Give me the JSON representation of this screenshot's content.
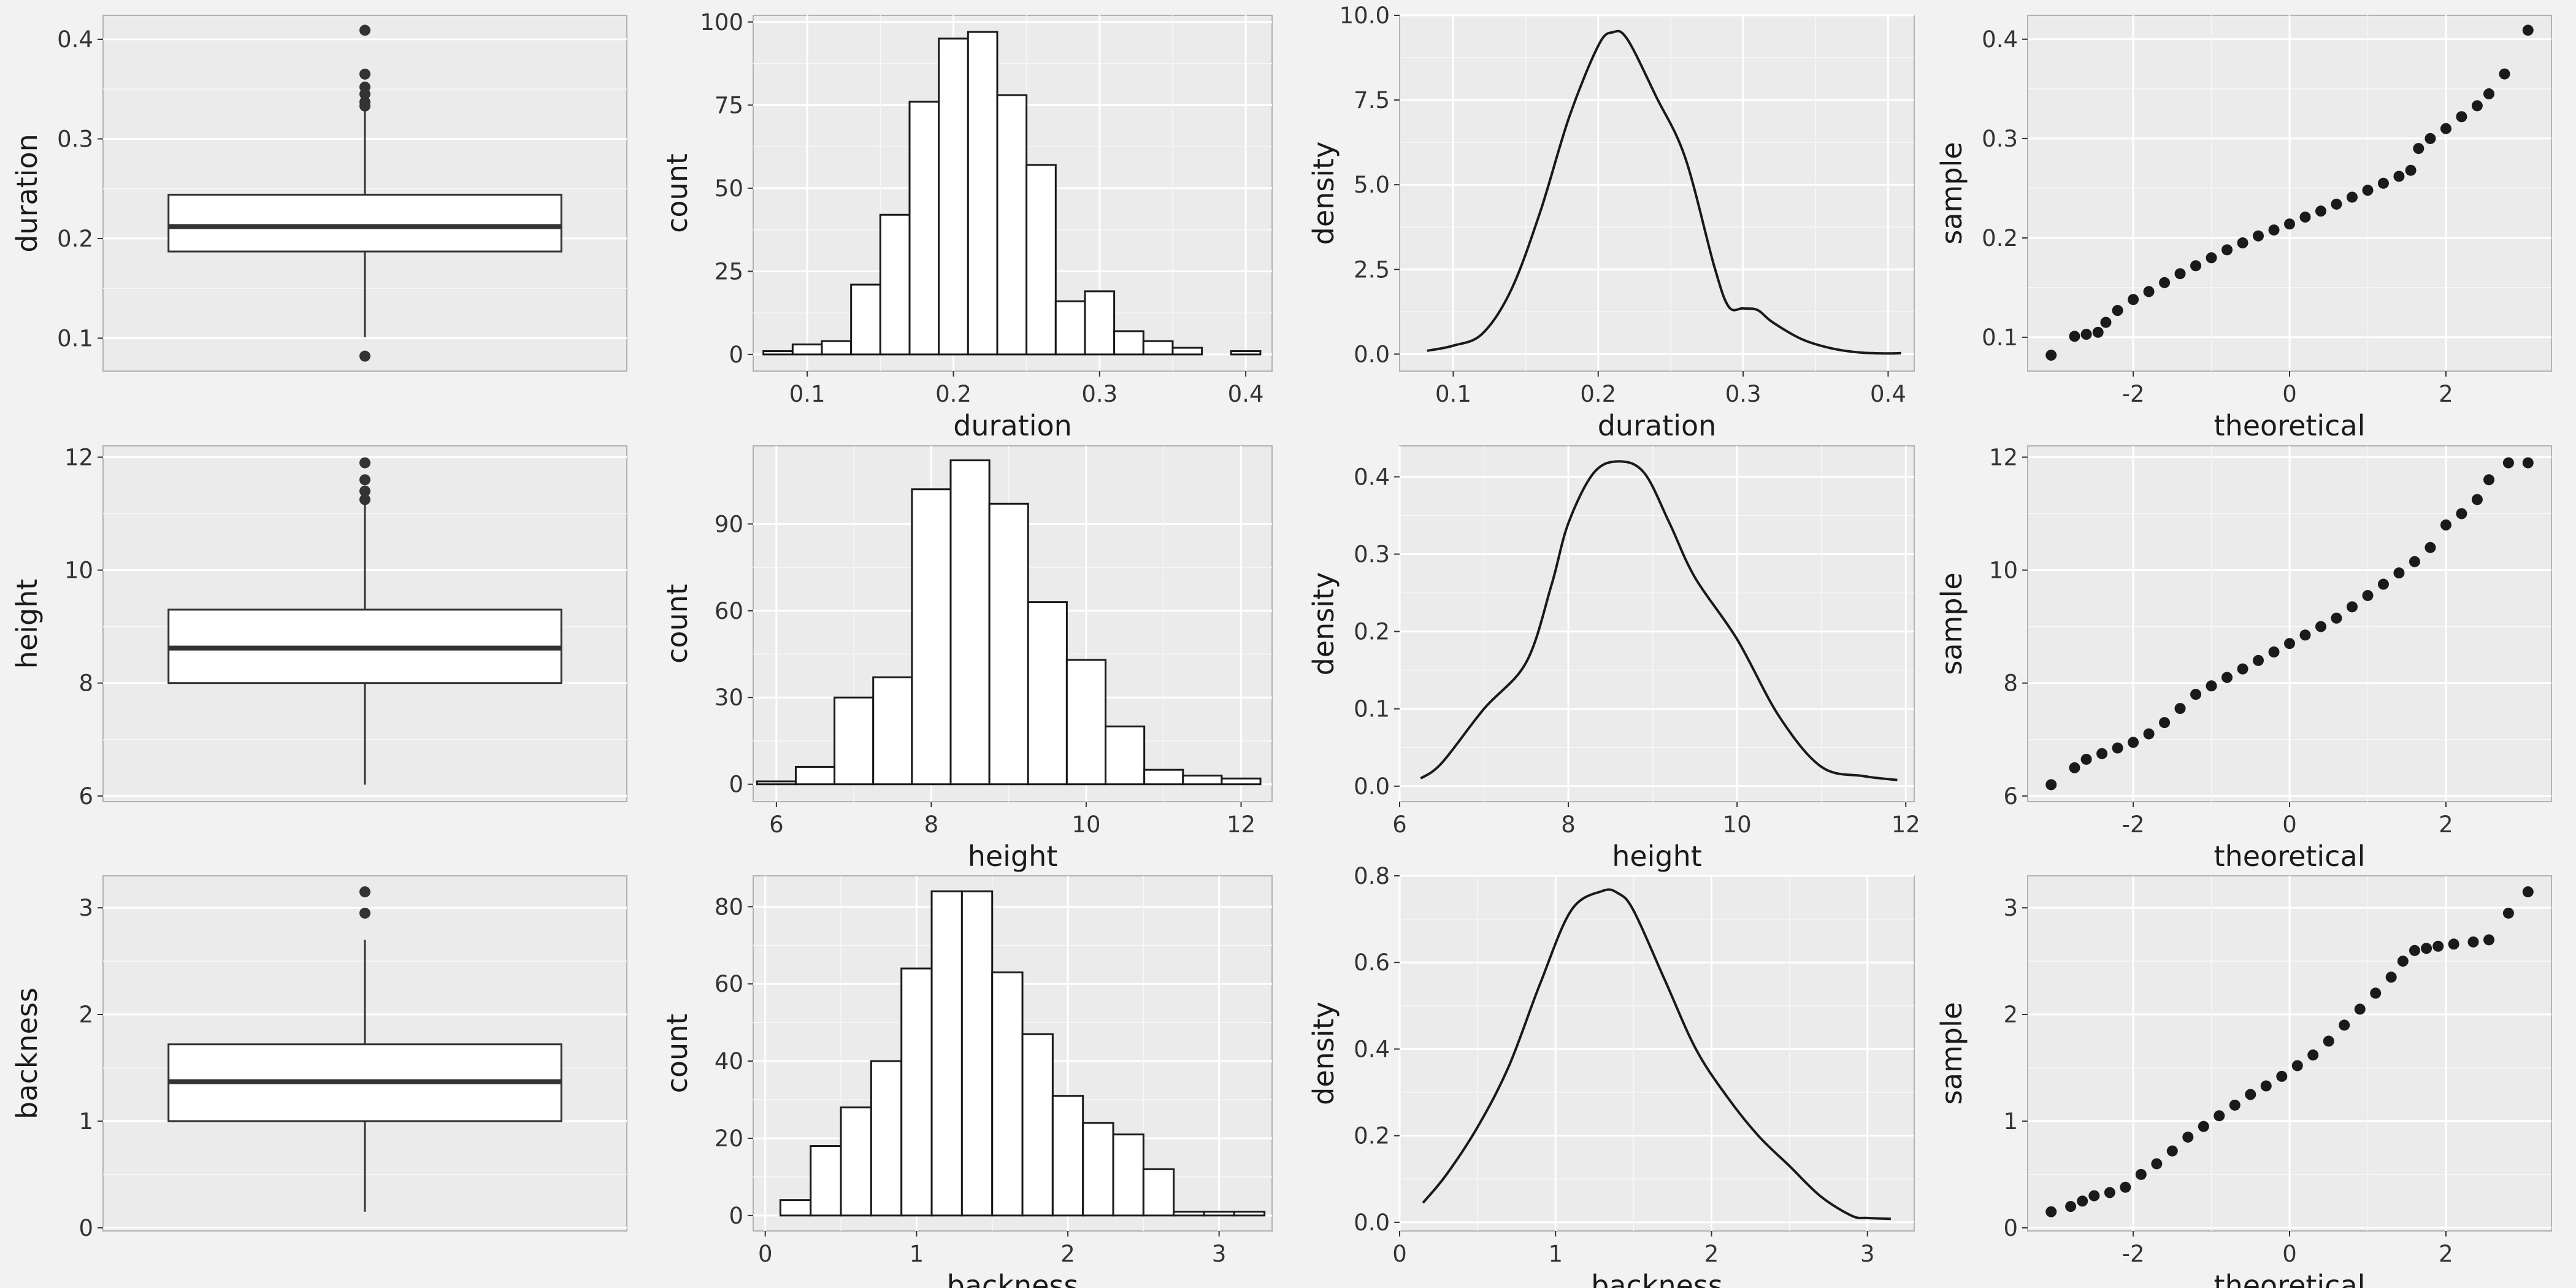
{
  "chart_data": [
    {
      "type": "boxplot",
      "variable": "duration",
      "ylabel": "duration",
      "xlabel": "",
      "ylim": [
        0.067,
        0.424
      ],
      "yticks": [
        0.1,
        0.2,
        0.3,
        0.4
      ],
      "stats": {
        "q1": 0.187,
        "median": 0.212,
        "q3": 0.244,
        "whisker_low": 0.101,
        "whisker_high": 0.329
      },
      "outliers": [
        0.082,
        0.333,
        0.337,
        0.345,
        0.352,
        0.365,
        0.409
      ]
    },
    {
      "type": "bar",
      "variable": "duration",
      "xlabel": "duration",
      "ylabel": "count",
      "xlim": [
        0.063,
        0.418
      ],
      "ylim": [
        -5,
        102
      ],
      "xticks": [
        0.1,
        0.2,
        0.3,
        0.4
      ],
      "yticks": [
        0,
        25,
        50,
        75,
        100
      ],
      "bin_width": 0.02,
      "bin_centers": [
        0.08,
        0.1,
        0.12,
        0.14,
        0.16,
        0.18,
        0.2,
        0.22,
        0.24,
        0.26,
        0.28,
        0.3,
        0.32,
        0.34,
        0.36,
        0.38,
        0.4
      ],
      "values": [
        1,
        3,
        4,
        21,
        42,
        76,
        95,
        97,
        78,
        57,
        16,
        19,
        7,
        4,
        2,
        0,
        1
      ]
    },
    {
      "type": "line",
      "variable": "duration",
      "xlabel": "duration",
      "ylabel": "density",
      "xlim": [
        0.063,
        0.418
      ],
      "ylim": [
        -0.5,
        10.0
      ],
      "xticks": [
        0.1,
        0.2,
        0.3,
        0.4
      ],
      "yticks": [
        0.0,
        2.5,
        5.0,
        7.5,
        10.0
      ],
      "x": [
        0.082,
        0.1,
        0.12,
        0.14,
        0.16,
        0.18,
        0.2,
        0.21,
        0.22,
        0.24,
        0.26,
        0.28,
        0.29,
        0.3,
        0.31,
        0.32,
        0.34,
        0.36,
        0.38,
        0.4,
        0.409
      ],
      "y": [
        0.1,
        0.25,
        0.6,
        1.9,
        4.2,
        7.0,
        9.1,
        9.5,
        9.3,
        7.6,
        5.8,
        2.6,
        1.4,
        1.35,
        1.3,
        0.95,
        0.45,
        0.18,
        0.05,
        0.02,
        0.03
      ]
    },
    {
      "type": "scatter",
      "variable": "duration",
      "xlabel": "theoretical",
      "ylabel": "sample",
      "xlim": [
        -3.35,
        3.35
      ],
      "ylim": [
        0.066,
        0.424
      ],
      "xticks": [
        -2,
        0,
        2
      ],
      "yticks": [
        0.1,
        0.2,
        0.3,
        0.4
      ],
      "x": [
        -3.05,
        -2.75,
        -2.6,
        -2.45,
        -2.35,
        -2.2,
        -2.0,
        -1.8,
        -1.6,
        -1.4,
        -1.2,
        -1.0,
        -0.8,
        -0.6,
        -0.4,
        -0.2,
        0.0,
        0.2,
        0.4,
        0.6,
        0.8,
        1.0,
        1.2,
        1.4,
        1.55,
        1.65,
        1.8,
        2.0,
        2.2,
        2.4,
        2.55,
        2.75,
        3.05
      ],
      "y": [
        0.082,
        0.101,
        0.103,
        0.105,
        0.115,
        0.127,
        0.138,
        0.146,
        0.155,
        0.164,
        0.172,
        0.18,
        0.188,
        0.195,
        0.202,
        0.208,
        0.214,
        0.221,
        0.227,
        0.234,
        0.241,
        0.248,
        0.255,
        0.262,
        0.268,
        0.29,
        0.3,
        0.31,
        0.322,
        0.333,
        0.345,
        0.365,
        0.409
      ]
    },
    {
      "type": "boxplot",
      "variable": "height",
      "ylabel": "height",
      "xlabel": "",
      "ylim": [
        5.9,
        12.2
      ],
      "yticks": [
        6,
        8,
        10,
        12
      ],
      "stats": {
        "q1": 8.0,
        "median": 8.62,
        "q3": 9.3,
        "whisker_low": 6.2,
        "whisker_high": 11.2
      },
      "outliers": [
        11.25,
        11.4,
        11.6,
        11.9
      ]
    },
    {
      "type": "bar",
      "variable": "height",
      "xlabel": "height",
      "ylabel": "count",
      "xlim": [
        5.7,
        12.4
      ],
      "ylim": [
        -6,
        117
      ],
      "xticks": [
        6,
        8,
        10,
        12
      ],
      "yticks": [
        0,
        30,
        60,
        90
      ],
      "bin_width": 0.5,
      "bin_centers": [
        6.0,
        6.5,
        7.0,
        7.5,
        8.0,
        8.5,
        9.0,
        9.5,
        10.0,
        10.5,
        11.0,
        11.5,
        12.0
      ],
      "values": [
        1,
        6,
        30,
        37,
        102,
        112,
        97,
        63,
        43,
        20,
        5,
        3,
        2
      ]
    },
    {
      "type": "line",
      "variable": "height",
      "xlabel": "height",
      "ylabel": "density",
      "xlim": [
        6.0,
        12.1
      ],
      "ylim": [
        -0.02,
        0.44
      ],
      "xticks": [
        6,
        8,
        10,
        12
      ],
      "yticks": [
        0.0,
        0.1,
        0.2,
        0.3,
        0.4
      ],
      "x": [
        6.25,
        6.5,
        7.0,
        7.5,
        7.8,
        8.0,
        8.3,
        8.6,
        8.9,
        9.2,
        9.5,
        10.0,
        10.5,
        11.0,
        11.5,
        11.9
      ],
      "y": [
        0.01,
        0.03,
        0.1,
        0.16,
        0.26,
        0.34,
        0.405,
        0.42,
        0.405,
        0.34,
        0.27,
        0.19,
        0.09,
        0.025,
        0.013,
        0.008
      ]
    },
    {
      "type": "scatter",
      "variable": "height",
      "xlabel": "theoretical",
      "ylabel": "sample",
      "xlim": [
        -3.35,
        3.35
      ],
      "ylim": [
        5.9,
        12.2
      ],
      "xticks": [
        -2,
        0,
        2
      ],
      "yticks": [
        6,
        8,
        10,
        12
      ],
      "x": [
        -3.05,
        -2.75,
        -2.6,
        -2.4,
        -2.2,
        -2.0,
        -1.8,
        -1.6,
        -1.4,
        -1.2,
        -1.0,
        -0.8,
        -0.6,
        -0.4,
        -0.2,
        0.0,
        0.2,
        0.4,
        0.6,
        0.8,
        1.0,
        1.2,
        1.4,
        1.6,
        1.8,
        2.0,
        2.2,
        2.4,
        2.55,
        2.8,
        3.05
      ],
      "y": [
        6.2,
        6.5,
        6.65,
        6.75,
        6.85,
        6.95,
        7.1,
        7.3,
        7.55,
        7.8,
        7.95,
        8.1,
        8.25,
        8.4,
        8.55,
        8.7,
        8.85,
        9.0,
        9.15,
        9.35,
        9.55,
        9.75,
        9.95,
        10.15,
        10.4,
        10.8,
        11.0,
        11.25,
        11.6,
        11.9,
        11.9
      ]
    },
    {
      "type": "boxplot",
      "variable": "backness",
      "ylabel": "backness",
      "xlabel": "",
      "ylim": [
        -0.03,
        3.3
      ],
      "yticks": [
        0,
        1,
        2,
        3
      ],
      "stats": {
        "q1": 1.0,
        "median": 1.37,
        "q3": 1.72,
        "whisker_low": 0.15,
        "whisker_high": 2.7
      },
      "outliers": [
        2.95,
        3.15
      ]
    },
    {
      "type": "bar",
      "variable": "backness",
      "xlabel": "backness",
      "ylabel": "count",
      "xlim": [
        -0.08,
        3.35
      ],
      "ylim": [
        -4,
        88
      ],
      "xticks": [
        0,
        1,
        2,
        3
      ],
      "yticks": [
        0,
        20,
        40,
        60,
        80
      ],
      "bin_width": 0.2,
      "bin_centers": [
        0.2,
        0.4,
        0.6,
        0.8,
        1.0,
        1.2,
        1.4,
        1.6,
        1.8,
        2.0,
        2.2,
        2.4,
        2.6,
        2.8,
        3.0,
        3.2
      ],
      "values": [
        4,
        18,
        28,
        40,
        64,
        84,
        84,
        63,
        47,
        31,
        24,
        21,
        12,
        1,
        1,
        1
      ]
    },
    {
      "type": "line",
      "variable": "backness",
      "xlabel": "backness",
      "ylabel": "density",
      "xlim": [
        0.0,
        3.3
      ],
      "ylim": [
        -0.02,
        0.8
      ],
      "xticks": [
        0,
        1,
        2,
        3
      ],
      "yticks": [
        0.0,
        0.2,
        0.4,
        0.6,
        0.8
      ],
      "x": [
        0.15,
        0.3,
        0.5,
        0.7,
        0.9,
        1.1,
        1.3,
        1.4,
        1.5,
        1.7,
        1.9,
        2.1,
        2.3,
        2.5,
        2.7,
        2.9,
        3.0,
        3.15
      ],
      "y": [
        0.045,
        0.11,
        0.22,
        0.36,
        0.55,
        0.72,
        0.765,
        0.76,
        0.72,
        0.56,
        0.4,
        0.29,
        0.2,
        0.13,
        0.06,
        0.015,
        0.01,
        0.008
      ]
    },
    {
      "type": "scatter",
      "variable": "backness",
      "xlabel": "theoretical",
      "ylabel": "sample",
      "xlim": [
        -3.35,
        3.35
      ],
      "ylim": [
        -0.03,
        3.3
      ],
      "xticks": [
        -2,
        0,
        2
      ],
      "yticks": [
        0,
        1,
        2,
        3
      ],
      "x": [
        -3.05,
        -2.8,
        -2.65,
        -2.5,
        -2.3,
        -2.1,
        -1.9,
        -1.7,
        -1.5,
        -1.3,
        -1.1,
        -0.9,
        -0.7,
        -0.5,
        -0.3,
        -0.1,
        0.1,
        0.3,
        0.5,
        0.7,
        0.9,
        1.1,
        1.3,
        1.45,
        1.6,
        1.75,
        1.9,
        2.1,
        2.35,
        2.55,
        2.8,
        3.05
      ],
      "y": [
        0.15,
        0.2,
        0.25,
        0.3,
        0.33,
        0.38,
        0.5,
        0.6,
        0.72,
        0.85,
        0.95,
        1.05,
        1.15,
        1.25,
        1.33,
        1.42,
        1.52,
        1.62,
        1.75,
        1.9,
        2.05,
        2.2,
        2.35,
        2.5,
        2.6,
        2.62,
        2.64,
        2.66,
        2.68,
        2.7,
        2.95,
        3.15
      ]
    }
  ]
}
